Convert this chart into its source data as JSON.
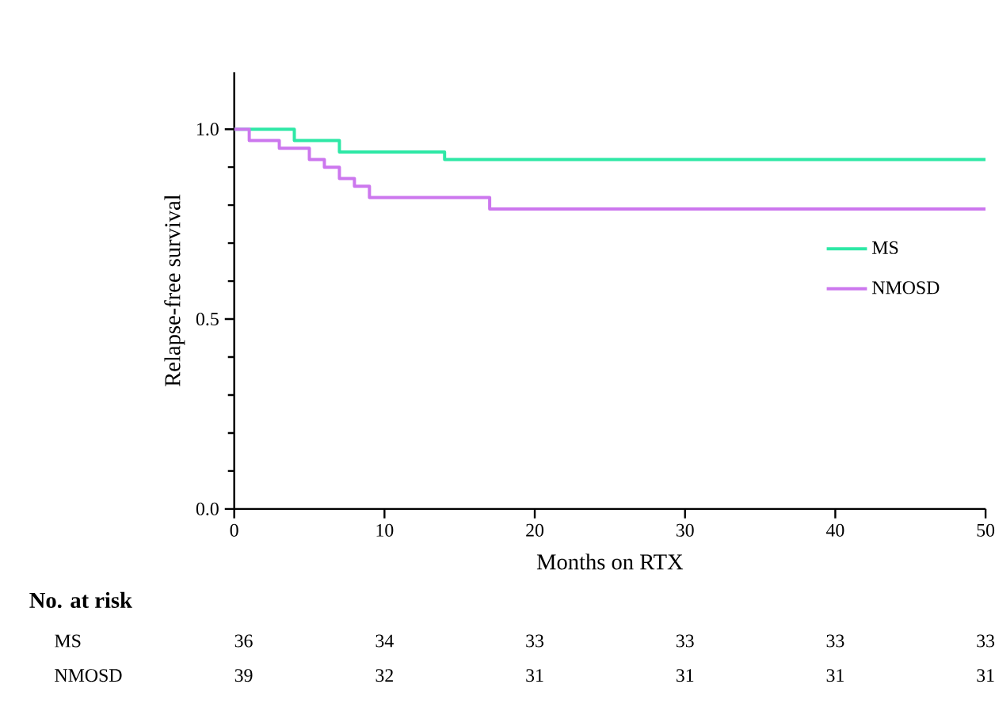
{
  "chart_data": {
    "type": "step",
    "xlabel": "Months on RTX",
    "ylabel": "Relapse-free survival",
    "xlim": [
      0,
      50
    ],
    "xticks": [
      0,
      10,
      20,
      30,
      40,
      50
    ],
    "ylim": [
      0,
      1.15
    ],
    "yticks": [
      {
        "value": 0,
        "label": "0.0"
      },
      {
        "value": 0.5,
        "label": "0.5"
      },
      {
        "value": 1,
        "label": "1.0"
      }
    ],
    "grid": false,
    "legend": "right",
    "marker": "none",
    "line_style": "solid",
    "series": [
      {
        "name": "MS",
        "color": "#2ee8a6",
        "x": [
          0,
          4,
          7,
          14,
          50
        ],
        "values": [
          1,
          0.97,
          0.94,
          0.92,
          0.92
        ]
      },
      {
        "name": "NMOSD",
        "color": "#cc77ee",
        "x": [
          0,
          1,
          3,
          5,
          6,
          7,
          8,
          9,
          17,
          50
        ],
        "values": [
          1,
          0.97,
          0.95,
          0.92,
          0.9,
          0.87,
          0.85,
          0.82,
          0.79,
          0.79
        ]
      }
    ],
    "annotations": [
      "No. at risk",
      "MS",
      "36",
      "34",
      "33",
      "33",
      "33",
      "33",
      "NMOSD",
      "39",
      "32",
      "31",
      "31",
      "31",
      "31"
    ]
  }
}
